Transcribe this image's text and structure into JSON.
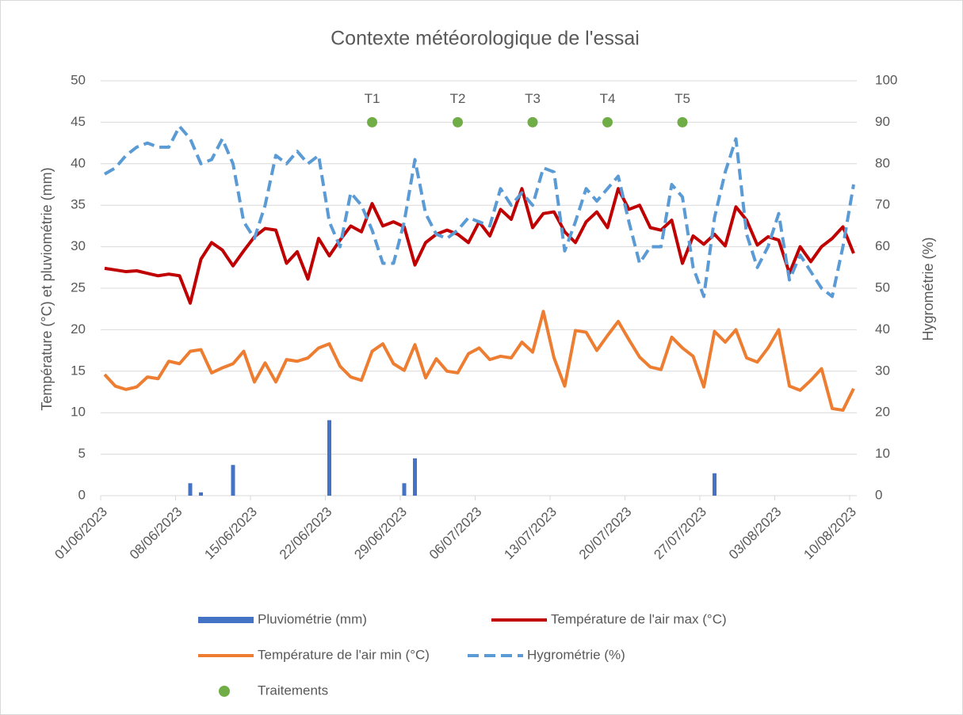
{
  "chart_data": {
    "type": "combo",
    "title": "Contexte météorologique de l'essai",
    "ylabel": "Température (°C) et pluviométrie (mm)",
    "y2label": "Hygrométrie (%)",
    "categories": [
      "01/06/2023",
      null,
      null,
      null,
      null,
      null,
      null,
      "08/06/2023",
      null,
      null,
      null,
      null,
      null,
      null,
      "15/06/2023",
      null,
      null,
      null,
      null,
      null,
      null,
      "22/06/2023",
      null,
      null,
      null,
      null,
      null,
      null,
      "29/06/2023",
      null,
      null,
      null,
      null,
      null,
      null,
      "06/07/2023",
      null,
      null,
      null,
      null,
      null,
      null,
      "13/07/2023",
      null,
      null,
      null,
      null,
      null,
      null,
      "20/07/2023",
      null,
      null,
      null,
      null,
      null,
      null,
      "27/07/2023",
      null,
      null,
      null,
      null,
      null,
      null,
      "03/08/2023",
      null,
      null,
      null,
      null,
      null,
      null,
      "10/08/2023"
    ],
    "ylim": [
      0,
      50
    ],
    "yticks": [
      0,
      5,
      10,
      15,
      20,
      25,
      30,
      35,
      40,
      45,
      50
    ],
    "y2lim": [
      0,
      100
    ],
    "y2ticks": [
      0,
      10,
      20,
      30,
      40,
      50,
      60,
      70,
      80,
      90,
      100
    ],
    "grid": true,
    "legend": "bottom",
    "series": [
      {
        "name": "Pluviométrie (mm)",
        "type": "bar",
        "color": "#4472c4",
        "values": [
          0,
          0,
          0,
          0,
          0,
          0,
          0,
          0,
          1.5,
          0.4,
          0,
          0,
          3.7,
          0,
          0,
          0,
          0,
          0,
          0,
          0,
          0,
          9.1,
          0,
          0,
          0,
          0,
          0,
          0,
          1.5,
          4.5,
          0,
          0,
          0,
          0,
          0,
          0,
          0,
          0,
          0,
          0,
          0,
          0,
          0,
          0,
          0,
          0,
          0,
          0,
          0,
          0,
          0,
          0,
          0,
          0,
          0,
          0,
          0,
          2.7,
          0,
          0,
          0,
          0,
          0,
          0,
          0,
          0,
          0,
          0,
          0,
          0,
          0
        ]
      },
      {
        "name": "Température de l'air max (°C)",
        "type": "line",
        "color": "#c00000",
        "values": [
          27.4,
          27.2,
          27.0,
          27.1,
          26.8,
          26.5,
          26.7,
          26.5,
          23.2,
          28.5,
          30.5,
          29.6,
          27.7,
          29.5,
          31.2,
          32.2,
          32.0,
          28.0,
          29.4,
          26.1,
          31.0,
          28.9,
          30.8,
          32.5,
          31.8,
          35.2,
          32.5,
          33.0,
          32.4,
          27.8,
          30.5,
          31.5,
          32.0,
          31.5,
          30.5,
          33.0,
          31.3,
          34.5,
          33.3,
          37.0,
          32.3,
          34.0,
          34.2,
          31.8,
          30.5,
          33.0,
          34.2,
          32.3,
          37.0,
          34.5,
          35.0,
          32.3,
          32.0,
          33.2,
          28.0,
          31.3,
          30.3,
          31.5,
          30.1,
          34.8,
          33.2,
          30.2,
          31.2,
          30.8,
          26.8,
          30.0,
          28.2,
          30.0,
          31.0,
          32.4,
          29.2
        ]
      },
      {
        "name": "Température de l'air min (°C)",
        "type": "line",
        "color": "#ed7d31",
        "values": [
          14.6,
          13.2,
          12.8,
          13.1,
          14.3,
          14.1,
          16.2,
          15.9,
          17.4,
          17.6,
          14.8,
          15.4,
          15.9,
          17.4,
          13.7,
          16.0,
          13.7,
          16.4,
          16.2,
          16.6,
          17.8,
          18.3,
          15.6,
          14.3,
          13.9,
          17.4,
          18.3,
          15.9,
          15.1,
          18.2,
          14.2,
          16.5,
          15.0,
          14.8,
          17.1,
          17.8,
          16.4,
          16.8,
          16.6,
          18.5,
          17.3,
          22.2,
          16.6,
          13.2,
          19.9,
          19.7,
          17.5,
          19.3,
          21.0,
          18.8,
          16.7,
          15.5,
          15.2,
          19.1,
          17.8,
          16.8,
          13.1,
          19.8,
          18.5,
          20.0,
          16.6,
          16.1,
          17.8,
          20.0,
          13.2,
          12.7,
          13.9,
          15.3,
          10.5,
          10.3,
          12.9
        ]
      },
      {
        "name": "Hygrométrie (%)",
        "type": "line",
        "axis": "y2",
        "dashed": true,
        "color": "#5b9bd5",
        "values": [
          77.5,
          79,
          82,
          84,
          85,
          84,
          84,
          89,
          86,
          80,
          81,
          86,
          80,
          66,
          62,
          70,
          82,
          80,
          83,
          80,
          82,
          66,
          60,
          73,
          70,
          64,
          56,
          56,
          66,
          81,
          68,
          63,
          62,
          64,
          67,
          66,
          65,
          74,
          70,
          73,
          70,
          79,
          78,
          59,
          66,
          74,
          71,
          74,
          77,
          66,
          56,
          60,
          60,
          75,
          72,
          55,
          48,
          67,
          78,
          86,
          63,
          55,
          60,
          68,
          52,
          58,
          54,
          50,
          48,
          60,
          75
        ]
      },
      {
        "name": "Traitements",
        "type": "scatter",
        "color": "#70ad47",
        "x": [
          "26/06/2023",
          "04/07/2023",
          "11/07/2023",
          "18/07/2023",
          "25/07/2023"
        ],
        "values": [
          45,
          45,
          45,
          45,
          45
        ],
        "point_labels": [
          "T1",
          "T2",
          "T3",
          "T4",
          "T5"
        ]
      }
    ]
  }
}
